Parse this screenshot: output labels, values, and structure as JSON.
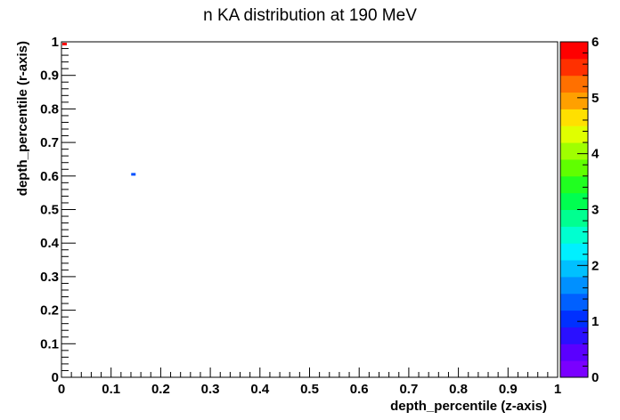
{
  "chart_data": {
    "type": "heatmap",
    "title": "n KA distribution at 190 MeV",
    "xlabel": "depth_percentile (z-axis)",
    "ylabel": "depth_percentile (r-axis)",
    "xlim": [
      0,
      1
    ],
    "ylim": [
      0,
      1
    ],
    "x_ticks": [
      "0",
      "0.1",
      "0.2",
      "0.3",
      "0.4",
      "0.5",
      "0.6",
      "0.7",
      "0.8",
      "0.9",
      "1"
    ],
    "y_ticks": [
      "0",
      "0.1",
      "0.2",
      "0.3",
      "0.4",
      "0.5",
      "0.6",
      "0.7",
      "0.8",
      "0.9",
      "1"
    ],
    "grid": false,
    "colorbar": {
      "range": [
        0,
        6
      ],
      "ticks": [
        "0",
        "1",
        "2",
        "3",
        "4",
        "5",
        "6"
      ],
      "colors": [
        "#7a00ff",
        "#5a00ff",
        "#2a10ff",
        "#0030ff",
        "#0060ff",
        "#0090ff",
        "#00c0ff",
        "#00f0ff",
        "#00ffd0",
        "#00ff90",
        "#00ff50",
        "#20ff20",
        "#60ff00",
        "#a0ff00",
        "#e0ff00",
        "#ffe000",
        "#ffa000",
        "#ff7000",
        "#ff3000",
        "#ff0000"
      ]
    },
    "cells": [
      {
        "x": 0.145,
        "y": 0.605,
        "value": 1,
        "color": "#0050ff"
      },
      {
        "x": 0.005,
        "y": 0.995,
        "value": 6,
        "color": "#ff0000"
      }
    ]
  }
}
